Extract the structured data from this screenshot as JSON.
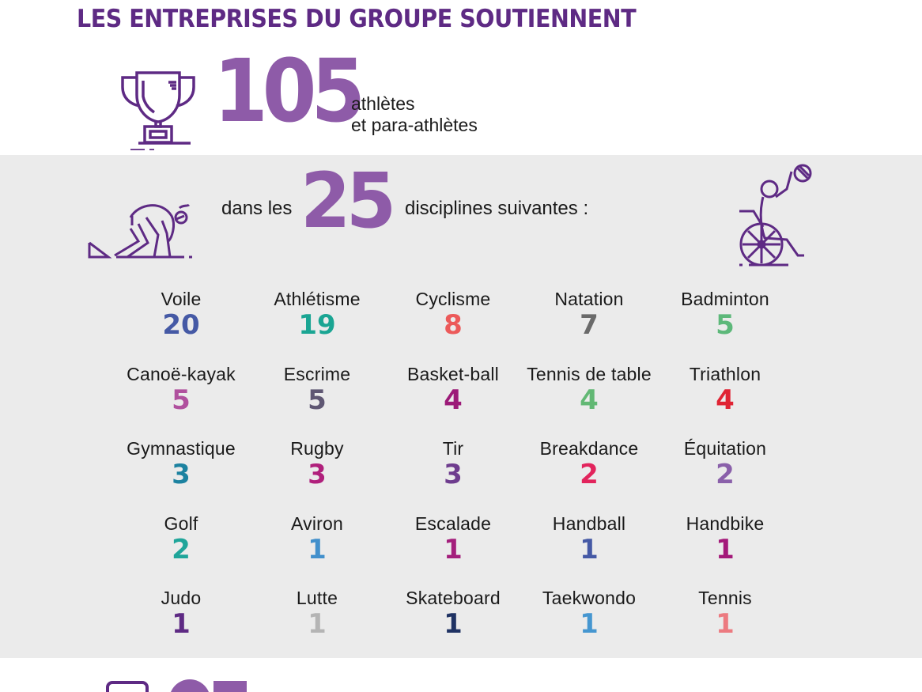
{
  "header": {
    "title": "LES ENTREPRISES DU GROUPE SOUTIENNENT"
  },
  "athletes": {
    "icon": "trophy-icon",
    "count": "105",
    "label_line1": "athlètes",
    "label_line2": "et para-athlètes"
  },
  "disciplines_intro": {
    "icon_left": "sprinter-icon",
    "icon_right": "wheelchair-athlete-icon",
    "prefix": "dans les",
    "count": "25",
    "suffix": "disciplines suivantes :"
  },
  "colors": {
    "title": "#5e2a84",
    "accent_purple": "#8e5ba8",
    "band_background": "#ebebeb",
    "icon_stroke": "#5e2a84"
  },
  "disciplines": [
    {
      "name": "Voile",
      "count": "20",
      "color": "#4559a5"
    },
    {
      "name": "Athlétisme",
      "count": "19",
      "color": "#1aa593"
    },
    {
      "name": "Cyclisme",
      "count": "8",
      "color": "#ec5a5a"
    },
    {
      "name": "Natation",
      "count": "7",
      "color": "#6a6a6a"
    },
    {
      "name": "Badminton",
      "count": "5",
      "color": "#5db87a"
    },
    {
      "name": "Canoë-kayak",
      "count": "5",
      "color": "#b0509e"
    },
    {
      "name": "Escrime",
      "count": "5",
      "color": "#5f5773"
    },
    {
      "name": "Basket-ball",
      "count": "4",
      "color": "#9c1a78"
    },
    {
      "name": "Tennis de table",
      "count": "4",
      "color": "#62b874"
    },
    {
      "name": "Triathlon",
      "count": "4",
      "color": "#e02434"
    },
    {
      "name": "Gymnastique",
      "count": "3",
      "color": "#1c82a0"
    },
    {
      "name": "Rugby",
      "count": "3",
      "color": "#b0207c"
    },
    {
      "name": "Tir",
      "count": "3",
      "color": "#6e3c8e"
    },
    {
      "name": "Breakdance",
      "count": "2",
      "color": "#e2245c"
    },
    {
      "name": "Équitation",
      "count": "2",
      "color": "#8a60aa"
    },
    {
      "name": "Golf",
      "count": "2",
      "color": "#1fa59a"
    },
    {
      "name": "Aviron",
      "count": "1",
      "color": "#4290cc"
    },
    {
      "name": "Escalade",
      "count": "1",
      "color": "#a41f7c"
    },
    {
      "name": "Handball",
      "count": "1",
      "color": "#4559a5"
    },
    {
      "name": "Handbike",
      "count": "1",
      "color": "#a4197a"
    },
    {
      "name": "Judo",
      "count": "1",
      "color": "#5e2a84"
    },
    {
      "name": "Lutte",
      "count": "1",
      "color": "#b4b4b4"
    },
    {
      "name": "Skateboard",
      "count": "1",
      "color": "#1f3263"
    },
    {
      "name": "Taekwondo",
      "count": "1",
      "color": "#4596d0"
    },
    {
      "name": "Tennis",
      "count": "1",
      "color": "#ec7a80"
    }
  ]
}
